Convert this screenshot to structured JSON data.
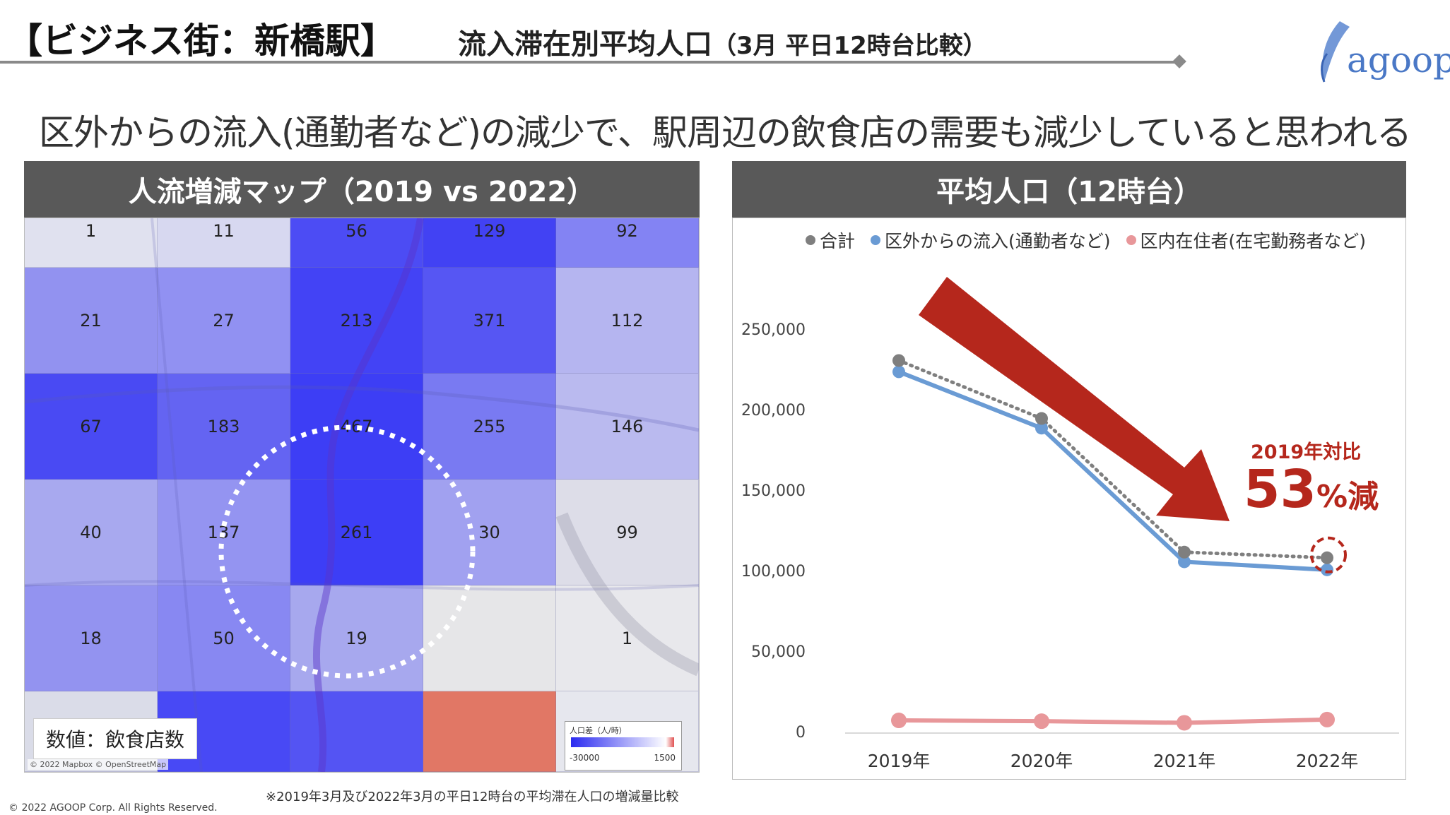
{
  "header": {
    "title_left": "【ビジネス街：新橋駅】",
    "title_right": "流入滞在別平均人口",
    "title_note": "（3月 平日12時台比較）",
    "logo_text": "agoop"
  },
  "subtitle": "区外からの流入(通勤者など)の減少で、駅周辺の飲食店の需要も減少していると思われる",
  "map_panel": {
    "header": "人流増減マップ（2019 vs 2022）",
    "grid_values": [
      [
        "1",
        "11",
        "56",
        "129",
        "92"
      ],
      [
        "21",
        "27",
        "213",
        "371",
        "112"
      ],
      [
        "67",
        "183",
        "467",
        "255",
        "146"
      ],
      [
        "40",
        "137",
        "261",
        "30",
        "99"
      ],
      [
        "18",
        "50",
        "19",
        "",
        ""
      ],
      [
        "",
        "",
        "",
        "",
        ""
      ]
    ],
    "row5_extra": {
      "col4": "1"
    },
    "grid_colors": [
      [
        "#dfe0ef",
        "#d6d7f0",
        "#3f3ff5",
        "#3434f4",
        "#7a7af3"
      ],
      [
        "#8b8bf0",
        "#8a8af2",
        "#3535f6",
        "#4a4af4",
        "#b1b1f0"
      ],
      [
        "#3c3cf4",
        "#5959f2",
        "#2f2ff6",
        "#7070f2",
        "#b6b6ef"
      ],
      [
        "#a3a3ef",
        "#8d8df1",
        "#2f2ff7",
        "#9b9bf0",
        "#dcdce8"
      ],
      [
        "#8c8cf0",
        "#8080f2",
        "#a2a2ee",
        "#e6e6e8",
        "#e8e8ec"
      ],
      [
        "#d9dbe8",
        "#3b3bf6",
        "#4747f4",
        "#e06d5a",
        "#e6e7ee"
      ]
    ],
    "value_label": "数値：飲食店数",
    "attribution": "© 2022 Mapbox © OpenStreetMap",
    "scale": {
      "title": "人口差（人/時）",
      "min": "-30000",
      "max": "1500"
    }
  },
  "chart_panel": {
    "header": "平均人口（12時台）"
  },
  "chart_data": {
    "type": "line",
    "categories": [
      "2019年",
      "2020年",
      "2021年",
      "2022年"
    ],
    "ylim": [
      0,
      250000
    ],
    "yticks": [
      0,
      50000,
      100000,
      150000,
      200000,
      250000
    ],
    "ytick_labels": [
      "0",
      "50,000",
      "100,000",
      "150,000",
      "200,000",
      "250,000"
    ],
    "series": [
      {
        "name": "合計",
        "values": [
          230500,
          194500,
          111500,
          108000
        ],
        "color": "#7f7f7f",
        "style": "dotted"
      },
      {
        "name": "区外からの流入(通勤者など)",
        "values": [
          223500,
          188500,
          105500,
          100500
        ],
        "color": "#6a9bd4",
        "style": "solid"
      },
      {
        "name": "区内在住者(在宅勤務者など)",
        "values": [
          7000,
          6500,
          5500,
          7500
        ],
        "color": "#e8979a",
        "style": "solid"
      }
    ],
    "annotation": {
      "line1": "2019年対比",
      "value": "53",
      "suffix": "%減"
    }
  },
  "footnote": "※2019年3月及び2022年3月の平日12時台の平均滞在人口の増減量比較",
  "copyright": "© 2022 AGOOP Corp. All Rights Reserved."
}
